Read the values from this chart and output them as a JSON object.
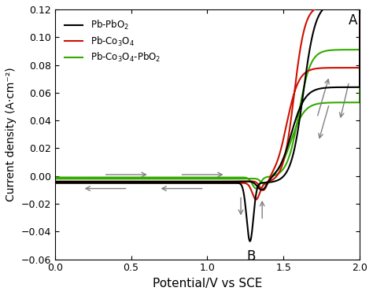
{
  "title": "",
  "xlabel": "Potential/V vs SCE",
  "ylabel": "Current density (A·cm⁻²)",
  "xlim": [
    0.0,
    2.0
  ],
  "ylim": [
    -0.06,
    0.12
  ],
  "xticks": [
    0.0,
    0.5,
    1.0,
    1.5,
    2.0
  ],
  "yticks": [
    -0.06,
    -0.04,
    -0.02,
    0.0,
    0.02,
    0.04,
    0.06,
    0.08,
    0.1,
    0.12
  ],
  "colors": {
    "black": "#000000",
    "red": "#cc1100",
    "green": "#33aa00"
  },
  "legend": [
    "Pb-PbO$_2$",
    "Pb-Co$_3$O$_4$",
    "Pb-Co$_3$O$_4$-PbO$_2$"
  ],
  "label_A": "A",
  "label_B": "B",
  "figsize": [
    4.74,
    3.75
  ],
  "dpi": 100
}
